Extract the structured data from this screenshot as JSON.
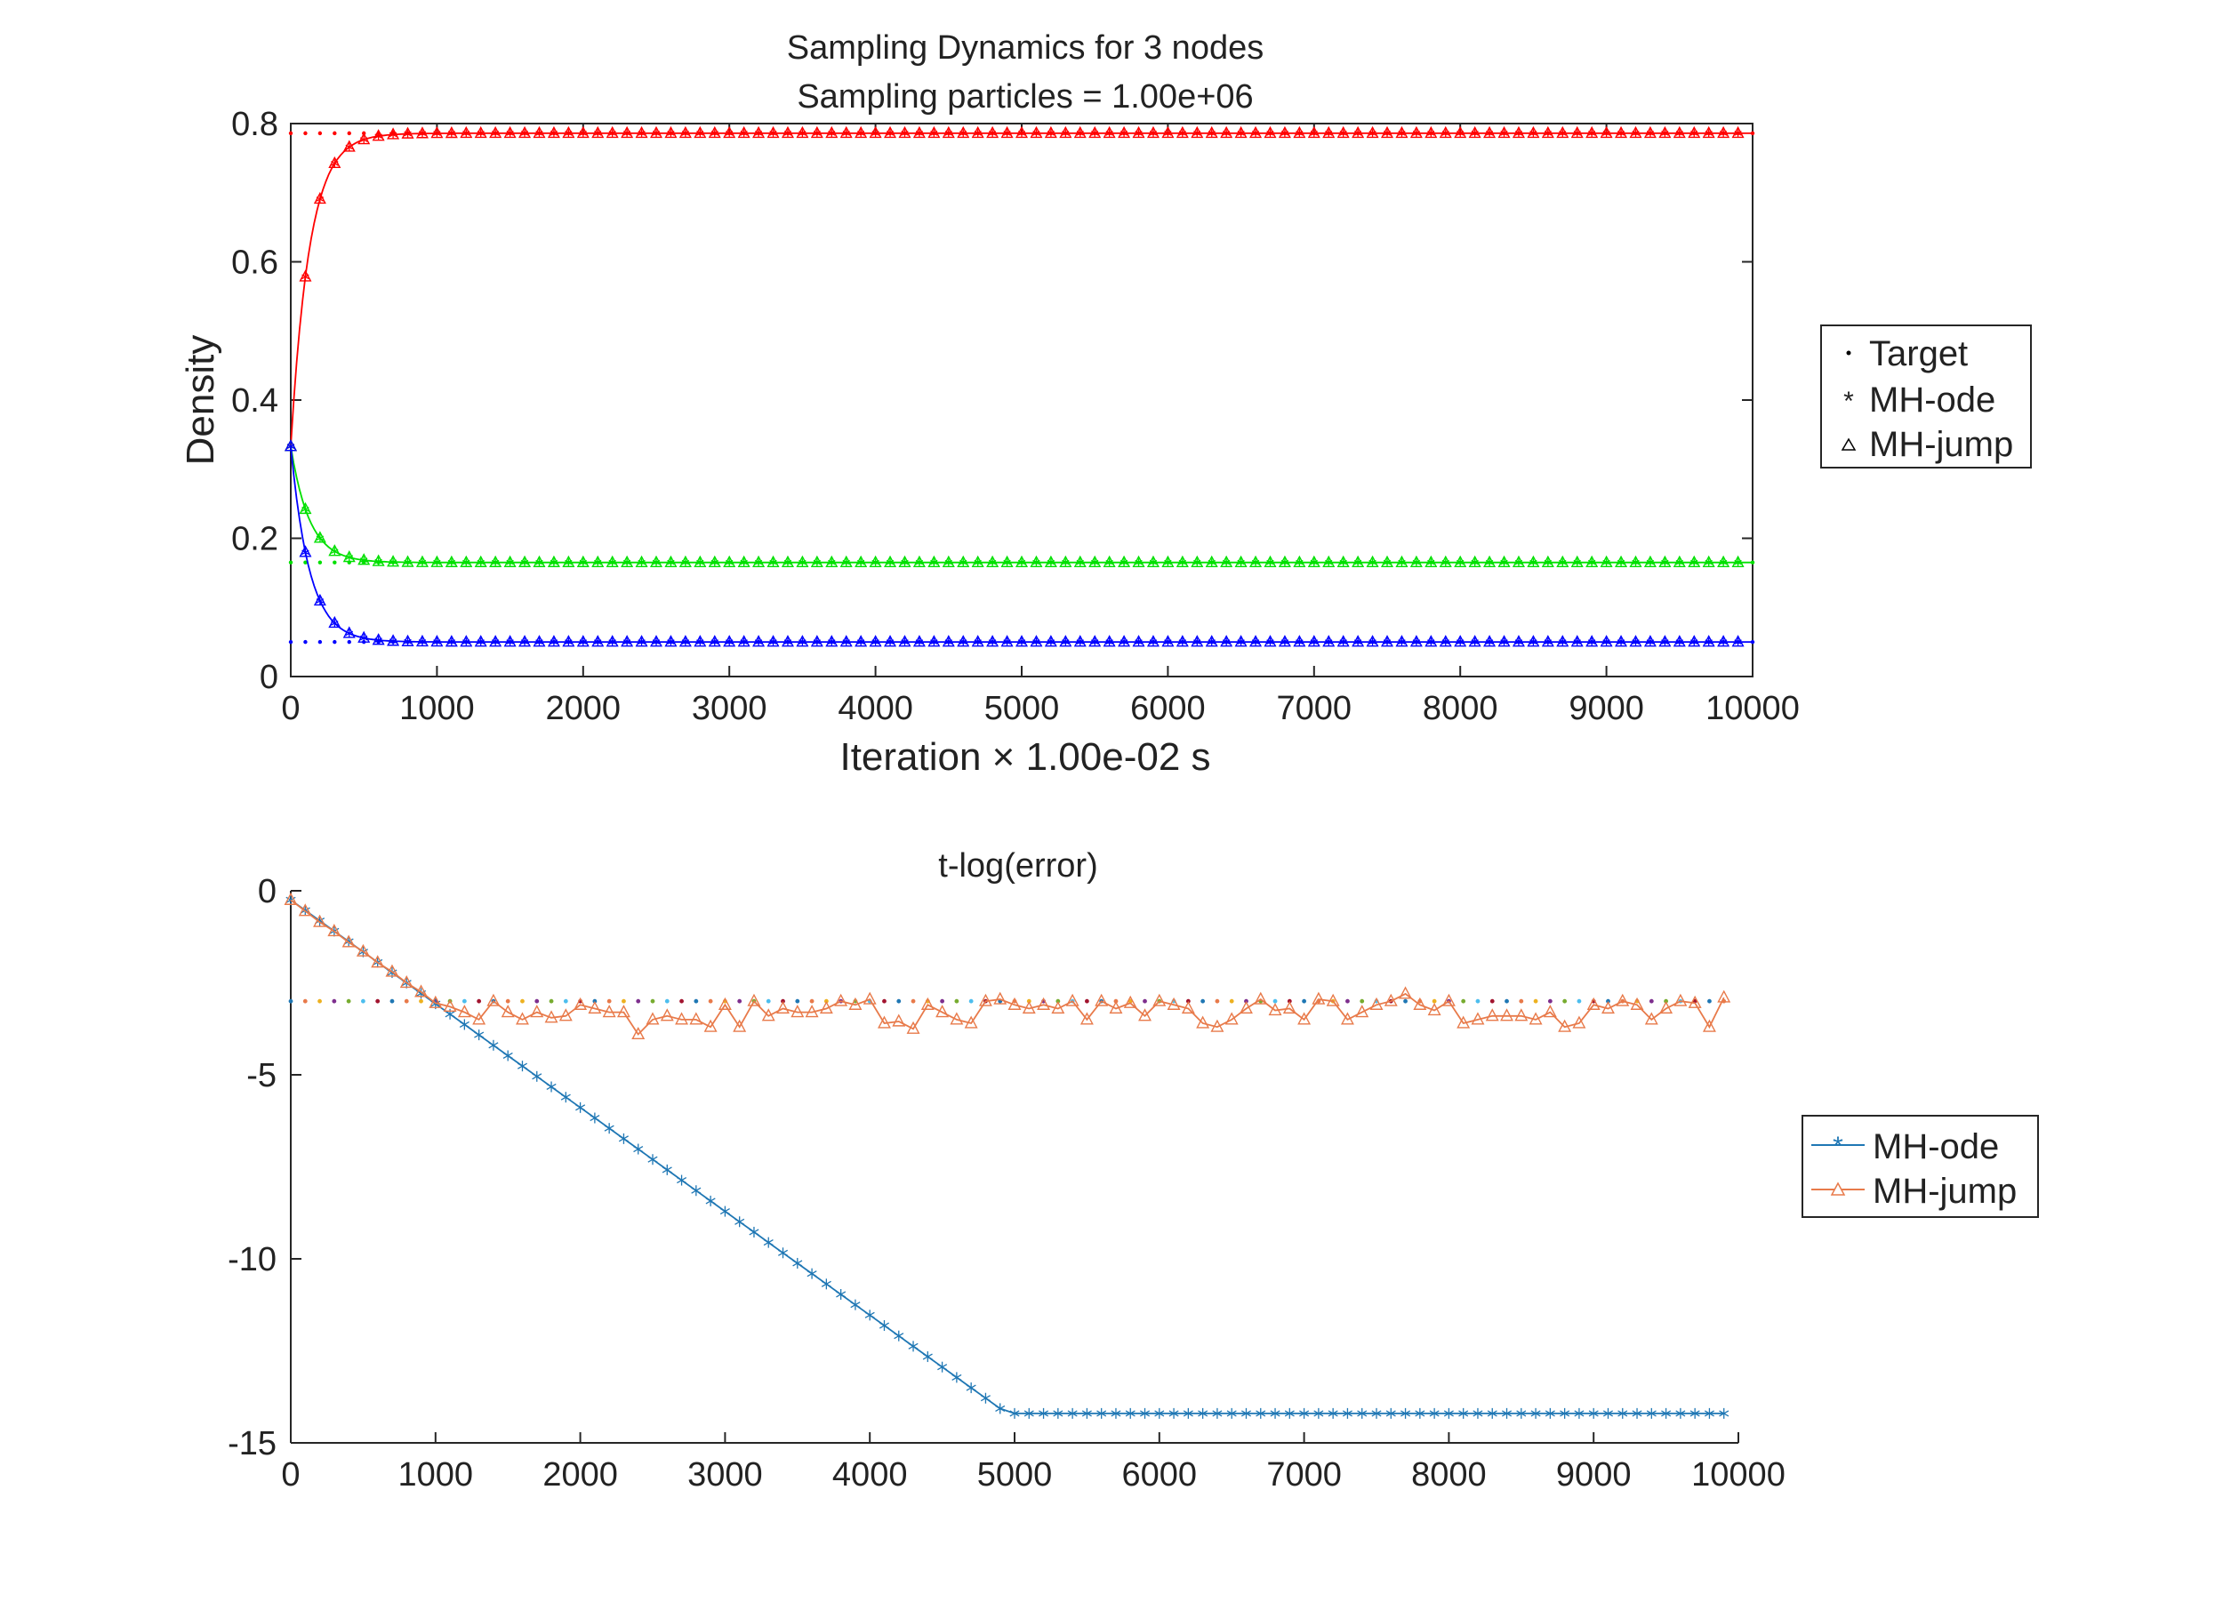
{
  "chart_data": [
    {
      "type": "line",
      "title_lines": [
        "Sampling Dynamics for 3 nodes",
        "Sampling particles = 1.00e+06"
      ],
      "xlabel": "Iteration × 1.00e-02 s",
      "ylabel": "Density",
      "xlim": [
        0,
        10000
      ],
      "ylim": [
        0,
        0.8
      ],
      "xticks": [
        "0",
        "1000",
        "2000",
        "3000",
        "4000",
        "5000",
        "6000",
        "7000",
        "8000",
        "9000",
        "10000"
      ],
      "yticks": [
        "0",
        "0.2",
        "0.4",
        "0.6",
        "0.8"
      ],
      "grid": false,
      "legend_position": "right",
      "legend": [
        {
          "marker": "dot",
          "label": "Target"
        },
        {
          "marker": "star",
          "label": "MH-ode"
        },
        {
          "marker": "triangle",
          "label": "MH-jump"
        }
      ],
      "series": [
        {
          "node": 1,
          "color": "#ff0000",
          "start": 0.333,
          "target": 0.786,
          "rate": 0.0078
        },
        {
          "node": 2,
          "color": "#00e000",
          "start": 0.333,
          "target": 0.165,
          "rate": 0.0078
        },
        {
          "node": 3,
          "color": "#0000ff",
          "start": 0.333,
          "target": 0.05,
          "rate": 0.0078
        }
      ],
      "x_sample_step": 100
    },
    {
      "type": "line",
      "title": "t-log(error)",
      "xlim": [
        0,
        10000
      ],
      "ylim": [
        -15,
        0
      ],
      "xticks": [
        "0",
        "1000",
        "2000",
        "3000",
        "4000",
        "5000",
        "6000",
        "7000",
        "8000",
        "9000",
        "10000"
      ],
      "yticks": [
        "0",
        "-5",
        "-10",
        "-15"
      ],
      "grid": false,
      "legend_position": "right",
      "reference_level": -3.0,
      "series": [
        {
          "name": "MH-ode",
          "color": "#1f77b4",
          "marker": "star",
          "x_step": 100,
          "start": -0.25,
          "slope_per_1000": -2.82,
          "floor": -14.2,
          "floor_from_x": 5100,
          "x_end": 9900
        },
        {
          "name": "MH-jump",
          "color": "#e87a4a",
          "marker": "triangle",
          "x": [
            0,
            100,
            200,
            300,
            400,
            500,
            600,
            700,
            800,
            900,
            1000,
            1100,
            1200,
            1300,
            1400,
            1500,
            1600,
            1700,
            1800,
            1900,
            2000,
            2100,
            2200,
            2300,
            2400,
            2500,
            2600,
            2700,
            2800,
            2900,
            3000,
            3100,
            3200,
            3300,
            3400,
            3500,
            3600,
            3700,
            3800,
            3900,
            4000,
            4100,
            4200,
            4300,
            4400,
            4500,
            4600,
            4700,
            4800,
            4900,
            5000,
            5100,
            5200,
            5300,
            5400,
            5500,
            5600,
            5700,
            5800,
            5900,
            6000,
            6100,
            6200,
            6300,
            6400,
            6500,
            6600,
            6700,
            6800,
            6900,
            7000,
            7100,
            7200,
            7300,
            7400,
            7500,
            7600,
            7700,
            7800,
            7900,
            8000,
            8100,
            8200,
            8300,
            8400,
            8500,
            8600,
            8700,
            8800,
            8900,
            9000,
            9100,
            9200,
            9300,
            9400,
            9500,
            9600,
            9700,
            9800,
            9900
          ],
          "y": [
            -0.25,
            -0.55,
            -0.85,
            -1.1,
            -1.4,
            -1.65,
            -1.95,
            -2.2,
            -2.5,
            -2.75,
            -3.05,
            -3.15,
            -3.3,
            -3.5,
            -3.0,
            -3.3,
            -3.5,
            -3.3,
            -3.45,
            -3.4,
            -3.1,
            -3.2,
            -3.3,
            -3.3,
            -3.9,
            -3.5,
            -3.4,
            -3.5,
            -3.5,
            -3.7,
            -3.1,
            -3.7,
            -3.0,
            -3.4,
            -3.2,
            -3.3,
            -3.3,
            -3.2,
            -3.0,
            -3.1,
            -2.95,
            -3.6,
            -3.55,
            -3.75,
            -3.1,
            -3.3,
            -3.5,
            -3.6,
            -3.0,
            -2.95,
            -3.1,
            -3.2,
            -3.1,
            -3.2,
            -3.0,
            -3.5,
            -3.0,
            -3.2,
            -3.05,
            -3.4,
            -3.0,
            -3.1,
            -3.2,
            -3.6,
            -3.7,
            -3.5,
            -3.2,
            -2.95,
            -3.25,
            -3.2,
            -3.5,
            -2.95,
            -3.0,
            -3.5,
            -3.3,
            -3.1,
            -3.0,
            -2.8,
            -3.1,
            -3.25,
            -3.0,
            -3.6,
            -3.5,
            -3.4,
            -3.4,
            -3.4,
            -3.5,
            -3.3,
            -3.7,
            -3.6,
            -3.1,
            -3.2,
            -3.0,
            -3.1,
            -3.5,
            -3.2,
            -3.0,
            -3.05,
            -3.7,
            -2.9
          ]
        }
      ]
    }
  ]
}
